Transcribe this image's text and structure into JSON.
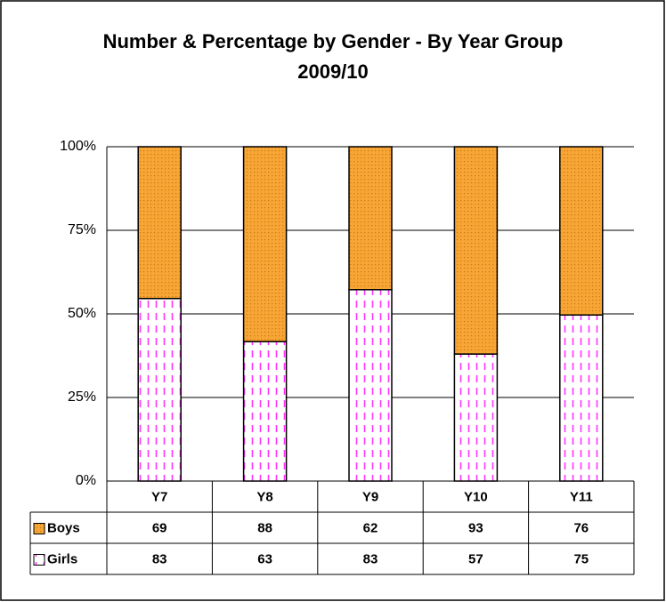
{
  "chart_data": {
    "type": "bar",
    "stacked": "percent",
    "title": "Number & Percentage by Gender - By Year Group 2009/10",
    "categories": [
      "Y7",
      "Y8",
      "Y9",
      "Y10",
      "Y11"
    ],
    "series": [
      {
        "name": "Boys",
        "color": "#f7a535",
        "values": [
          69,
          88,
          62,
          93,
          76
        ]
      },
      {
        "name": "Girls",
        "color": "#ff33ff",
        "values": [
          83,
          63,
          83,
          57,
          75
        ]
      }
    ],
    "ylim": [
      0,
      100
    ],
    "yticks": [
      {
        "value": 0,
        "label": "0%"
      },
      {
        "value": 25,
        "label": "25%"
      },
      {
        "value": 50,
        "label": "50%"
      },
      {
        "value": 75,
        "label": "75%"
      },
      {
        "value": 100,
        "label": "100%"
      }
    ],
    "grid": true,
    "data_table": true
  }
}
